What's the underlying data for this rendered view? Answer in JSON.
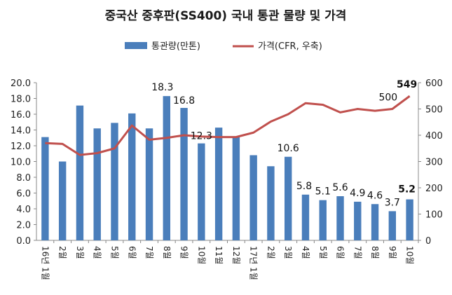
{
  "chart_data": {
    "type": "bar+line",
    "title": "중국산 중후판(SS400) 국내 통관 물량 및 가격",
    "categories": [
      "16년 1월",
      "2월",
      "3월",
      "4월",
      "5월",
      "6월",
      "7월",
      "8월",
      "9월",
      "10월",
      "11월",
      "12월",
      "17년 1월",
      "2월",
      "3월",
      "4월",
      "5월",
      "6월",
      "7월",
      "8월",
      "9월",
      "10월"
    ],
    "series": [
      {
        "name": "통관량(만톤)",
        "type": "bar",
        "axis": "left",
        "color": "#4a7ebb",
        "values": [
          13.1,
          10.0,
          17.1,
          14.2,
          14.9,
          16.1,
          14.2,
          18.3,
          16.8,
          12.3,
          14.3,
          13.1,
          10.8,
          9.4,
          10.6,
          5.8,
          5.1,
          5.6,
          4.9,
          4.6,
          3.7,
          5.2
        ],
        "labels": {
          "7": "18.3",
          "8": "16.8",
          "9": "12.3",
          "14": "10.6",
          "15": "5.8",
          "16": "5.1",
          "17": "5.6",
          "18": "4.9",
          "19": "4.6",
          "20": "3.7",
          "21": "5.2"
        }
      },
      {
        "name": "가격(CFR, 우축)",
        "type": "line",
        "axis": "right",
        "color": "#c0504d",
        "values": [
          370,
          367,
          325,
          332,
          350,
          437,
          383,
          390,
          400,
          395,
          393,
          393,
          410,
          452,
          480,
          522,
          516,
          487,
          500,
          493,
          500,
          549
        ],
        "labels": {
          "20": "500",
          "21": "549"
        }
      }
    ],
    "y_left": {
      "min": 0,
      "max": 20,
      "ticks": [
        "0.0",
        "2.0",
        "4.0",
        "6.0",
        "8.0",
        "10.0",
        "12.0",
        "14.0",
        "16.0",
        "18.0",
        "20.0"
      ]
    },
    "y_right": {
      "min": 0,
      "max": 600,
      "ticks": [
        "0",
        "100",
        "200",
        "300",
        "400",
        "500",
        "600"
      ]
    },
    "legend_position": "top-center",
    "highlight_color": "#c0504d"
  }
}
